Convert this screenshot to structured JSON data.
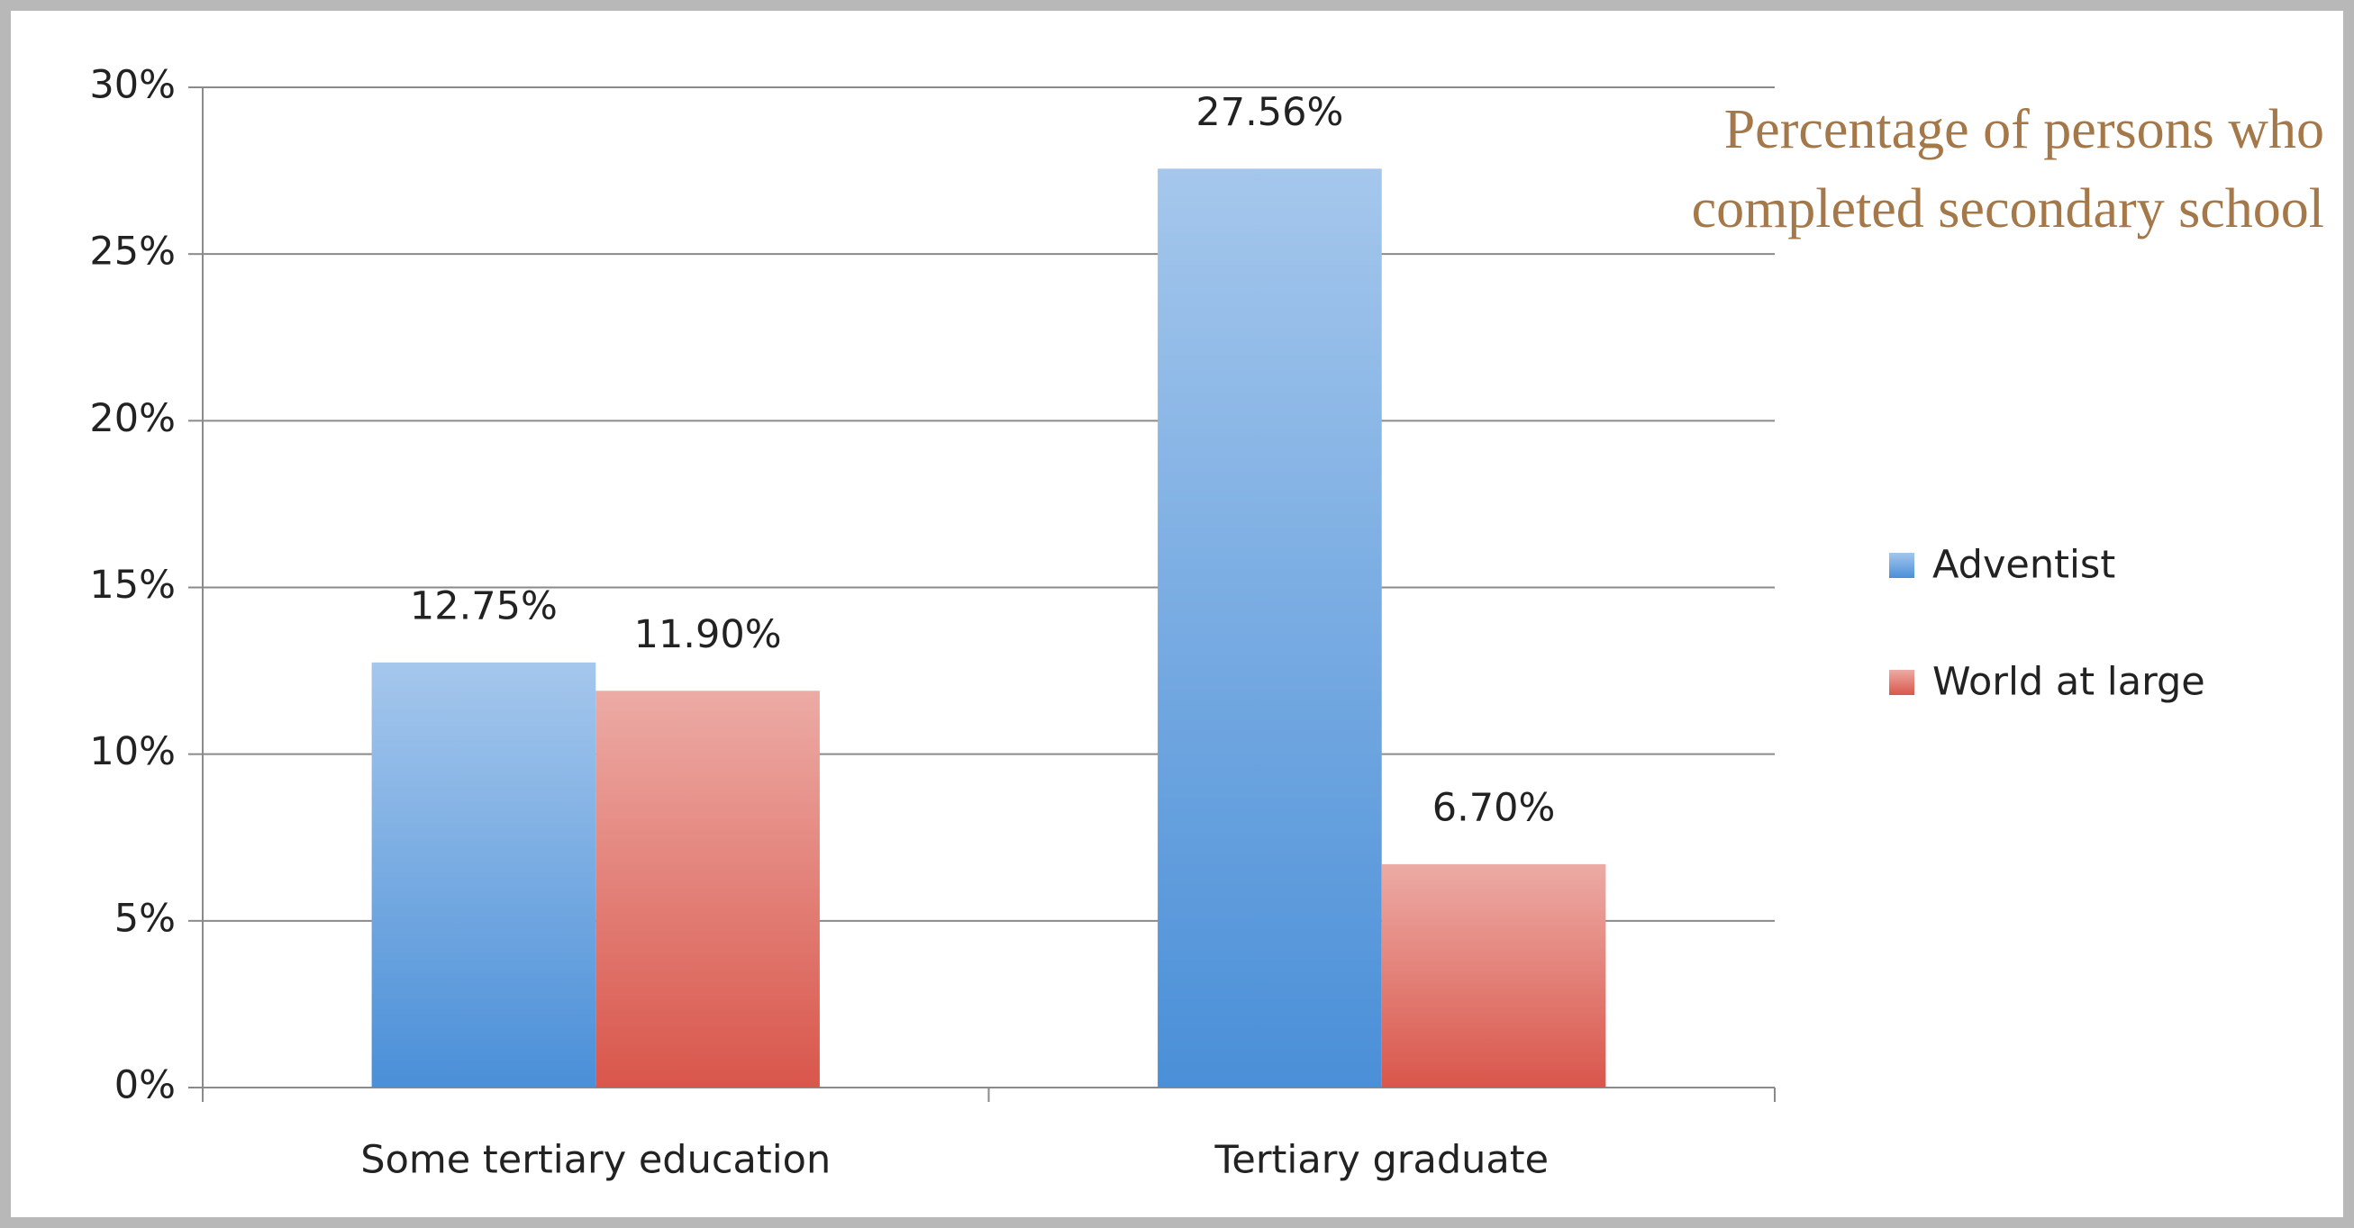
{
  "chart_data": {
    "type": "bar",
    "title": [
      "Percentage of persons who",
      "completed secondary school"
    ],
    "categories": [
      "Some tertiary education",
      "Tertiary graduate"
    ],
    "series": [
      {
        "name": "Adventist",
        "color": "#4a8fd8",
        "values": [
          12.75,
          27.56
        ],
        "value_labels": [
          "12.75%",
          "27.56%"
        ]
      },
      {
        "name": "World at large",
        "color": "#d9564b",
        "values": [
          11.9,
          6.7
        ],
        "value_labels": [
          "11.90%",
          "6.70%"
        ]
      }
    ],
    "ylim": [
      0,
      30
    ],
    "yticks": [
      {
        "value": 0,
        "label": "0%"
      },
      {
        "value": 5,
        "label": "5%"
      },
      {
        "value": 10,
        "label": "10%"
      },
      {
        "value": 15,
        "label": "15%"
      },
      {
        "value": 20,
        "label": "20%"
      },
      {
        "value": 25,
        "label": "25%"
      },
      {
        "value": 30,
        "label": "30%"
      }
    ],
    "grid": true,
    "legend": "right"
  }
}
